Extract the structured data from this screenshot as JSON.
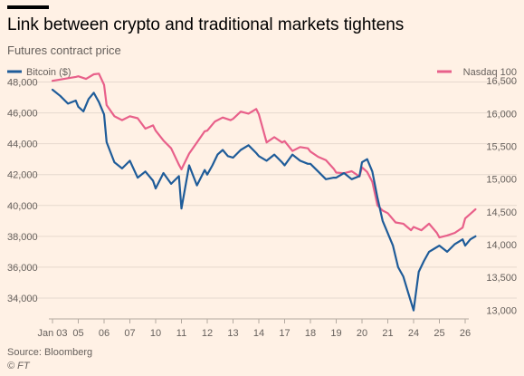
{
  "header": {
    "title": "Link between crypto and traditional markets tightens",
    "subtitle": "Futures contract price"
  },
  "footer": {
    "source": "Source: Bloomberg",
    "credit": "© FT"
  },
  "colors": {
    "background": "#FFF1E5",
    "bitcoin": "#1F5C99",
    "nasdaq": "#E8608A",
    "grid": "#E6D9CE",
    "axis_text": "#66605C"
  },
  "chart_data": {
    "type": "line",
    "title": "Link between crypto and traditional markets tightens",
    "subtitle": "Futures contract price",
    "x_tick_labels": [
      "Jan 03",
      "05",
      "06",
      "07",
      "10",
      "11",
      "12",
      "13",
      "14",
      "17",
      "18",
      "19",
      "20",
      "21",
      "24",
      "25",
      "26"
    ],
    "y_left": {
      "label": "Bitcoin ($)",
      "ticks": [
        34000,
        36000,
        38000,
        40000,
        42000,
        44000,
        46000,
        48000
      ],
      "tick_labels": [
        "34,000",
        "36,000",
        "38,000",
        "40,000",
        "42,000",
        "44,000",
        "46,000",
        "48,000"
      ],
      "range": [
        33000,
        48500
      ]
    },
    "y_right": {
      "label": "Nasdaq 100",
      "ticks": [
        13000,
        13500,
        14000,
        14500,
        15000,
        15500,
        16000,
        16500
      ],
      "tick_labels": [
        "13,000",
        "13,500",
        "14,000",
        "14,500",
        "15,000",
        "15,500",
        "16,000",
        "16,500"
      ],
      "range": [
        12950,
        16600
      ]
    },
    "legend": [
      {
        "name": "Bitcoin ($)",
        "position": "top-left"
      },
      {
        "name": "Nasdaq 100",
        "position": "top-right"
      }
    ],
    "grid": true,
    "series": [
      {
        "name": "Bitcoin ($)",
        "axis": "left",
        "x": [
          0,
          0.3,
          0.6,
          0.9,
          1.0,
          1.2,
          1.4,
          1.6,
          1.8,
          2.0,
          2.1,
          2.4,
          2.7,
          3.0,
          3.3,
          3.6,
          3.9,
          4.0,
          4.3,
          4.6,
          4.9,
          5.0,
          5.3,
          5.6,
          5.9,
          6.0,
          6.2,
          6.4,
          6.6,
          6.8,
          7.0,
          7.3,
          7.6,
          7.9,
          8.0,
          8.3,
          8.6,
          8.9,
          9.0,
          9.3,
          9.6,
          9.9,
          10.0,
          10.3,
          10.6,
          10.9,
          11.0,
          11.3,
          11.6,
          11.9,
          12.0,
          12.2,
          12.4,
          12.6,
          12.8,
          13.0,
          13.2,
          13.4,
          13.6,
          13.8,
          14.0,
          14.2,
          14.4,
          14.6,
          14.8,
          15.0,
          15.3,
          15.6,
          15.9,
          16.0,
          16.2,
          16.4
        ],
        "values": [
          47500,
          47100,
          46600,
          46800,
          46400,
          46100,
          46900,
          47300,
          46700,
          45900,
          44100,
          42800,
          42400,
          42900,
          41800,
          42200,
          41600,
          41100,
          42100,
          41400,
          41900,
          39800,
          42600,
          41300,
          42300,
          42000,
          42600,
          43300,
          43600,
          43200,
          43100,
          43600,
          43900,
          43400,
          43200,
          42900,
          43300,
          42800,
          42600,
          43300,
          42900,
          42700,
          42700,
          42200,
          41700,
          41800,
          41800,
          42100,
          41700,
          41900,
          42800,
          43000,
          42200,
          40500,
          39000,
          38200,
          37400,
          36000,
          35400,
          34300,
          33200,
          35700,
          36400,
          37000,
          37200,
          37400,
          37000,
          37500,
          37800,
          37400,
          37800,
          38000
        ]
      },
      {
        "name": "Nasdaq 100",
        "axis": "right",
        "x": [
          0,
          0.3,
          0.6,
          0.9,
          1.0,
          1.3,
          1.6,
          1.8,
          2.0,
          2.1,
          2.4,
          2.7,
          3.0,
          3.3,
          3.6,
          3.9,
          4.0,
          4.3,
          4.6,
          4.9,
          5.0,
          5.3,
          5.6,
          5.9,
          6.0,
          6.3,
          6.6,
          6.9,
          7.0,
          7.3,
          7.6,
          7.9,
          8.0,
          8.3,
          8.6,
          8.9,
          9.0,
          9.3,
          9.6,
          9.9,
          10.0,
          10.3,
          10.6,
          10.9,
          11.0,
          11.3,
          11.6,
          11.9,
          12.0,
          12.2,
          12.4,
          12.6,
          12.8,
          13.0,
          13.3,
          13.6,
          13.9,
          14.0,
          14.3,
          14.6,
          14.9,
          15.0,
          15.3,
          15.6,
          15.9,
          16.0,
          16.2,
          16.4
        ],
        "values": [
          16500,
          16520,
          16540,
          16560,
          16570,
          16530,
          16600,
          16610,
          16440,
          16130,
          15960,
          15900,
          15960,
          15930,
          15770,
          15820,
          15740,
          15590,
          15470,
          15220,
          15150,
          15390,
          15560,
          15730,
          15740,
          15880,
          15940,
          15900,
          15920,
          16030,
          16000,
          16070,
          15990,
          15560,
          15640,
          15560,
          15580,
          15430,
          15490,
          15470,
          15420,
          15340,
          15290,
          15160,
          15100,
          15090,
          15120,
          15040,
          15180,
          15110,
          14960,
          14600,
          14520,
          14480,
          14340,
          14320,
          14220,
          14270,
          14220,
          14320,
          14180,
          14110,
          14140,
          14180,
          14260,
          14400,
          14470,
          14540
        ]
      }
    ]
  }
}
